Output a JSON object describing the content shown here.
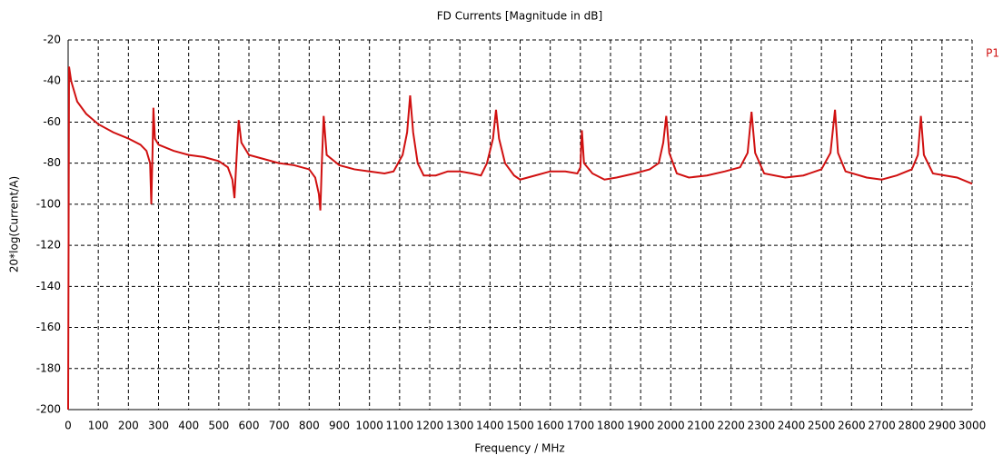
{
  "chart_data": {
    "type": "line",
    "title": "FD Currents [Magnitude in dB]",
    "x_label": "Frequency / MHz",
    "y_label": "20*log(Current/A)",
    "xlim": [
      0,
      3000
    ],
    "ylim": [
      -200,
      -20
    ],
    "xticks": [
      0,
      100,
      200,
      300,
      400,
      500,
      600,
      700,
      800,
      900,
      1000,
      1100,
      1200,
      1300,
      1400,
      1500,
      1600,
      1700,
      1800,
      1900,
      2000,
      2100,
      2200,
      2300,
      2400,
      2500,
      2600,
      2700,
      2800,
      2900,
      3000
    ],
    "yticks": [
      -20,
      -40,
      -60,
      -80,
      -100,
      -120,
      -140,
      -160,
      -180,
      -200
    ],
    "grid": true,
    "legend": "top-right",
    "series": [
      {
        "name": "P1",
        "color": "#d01010",
        "x": [
          0,
          3,
          10,
          30,
          60,
          100,
          150,
          200,
          240,
          260,
          272,
          276,
          280,
          283,
          288,
          300,
          350,
          400,
          450,
          500,
          530,
          545,
          552,
          558,
          566,
          575,
          600,
          650,
          700,
          750,
          800,
          820,
          832,
          837,
          842,
          848,
          858,
          900,
          950,
          1000,
          1050,
          1080,
          1110,
          1125,
          1135,
          1145,
          1160,
          1180,
          1220,
          1260,
          1300,
          1340,
          1370,
          1390,
          1410,
          1420,
          1430,
          1450,
          1480,
          1500,
          1550,
          1600,
          1650,
          1690,
          1700,
          1705,
          1712,
          1740,
          1780,
          1820,
          1880,
          1930,
          1960,
          1975,
          1985,
          1995,
          2020,
          2060,
          2120,
          2180,
          2230,
          2255,
          2268,
          2280,
          2310,
          2380,
          2440,
          2500,
          2530,
          2545,
          2555,
          2580,
          2650,
          2700,
          2750,
          2800,
          2820,
          2830,
          2840,
          2870,
          2950,
          3000
        ],
        "values": [
          -200,
          -33,
          -40,
          -50,
          -56,
          -61,
          -65,
          -68,
          -71,
          -74,
          -80,
          -100,
          -75,
          -53,
          -68,
          -71,
          -74,
          -76,
          -77,
          -79,
          -82,
          -88,
          -97,
          -80,
          -59,
          -70,
          -76,
          -78,
          -80,
          -81,
          -83,
          -87,
          -95,
          -103,
          -80,
          -57,
          -76,
          -81,
          -83,
          -84,
          -85,
          -84,
          -76,
          -65,
          -47,
          -65,
          -80,
          -86,
          -86,
          -84,
          -84,
          -85,
          -86,
          -80,
          -68,
          -54,
          -68,
          -80,
          -86,
          -88,
          -86,
          -84,
          -84,
          -85,
          -82,
          -64,
          -80,
          -85,
          -88,
          -87,
          -85,
          -83,
          -80,
          -70,
          -57,
          -75,
          -85,
          -87,
          -86,
          -84,
          -82,
          -75,
          -55,
          -75,
          -85,
          -87,
          -86,
          -83,
          -75,
          -54,
          -75,
          -84,
          -87,
          -88,
          -86,
          -83,
          -76,
          -57,
          -76,
          -85,
          -87,
          -90
        ]
      }
    ]
  }
}
